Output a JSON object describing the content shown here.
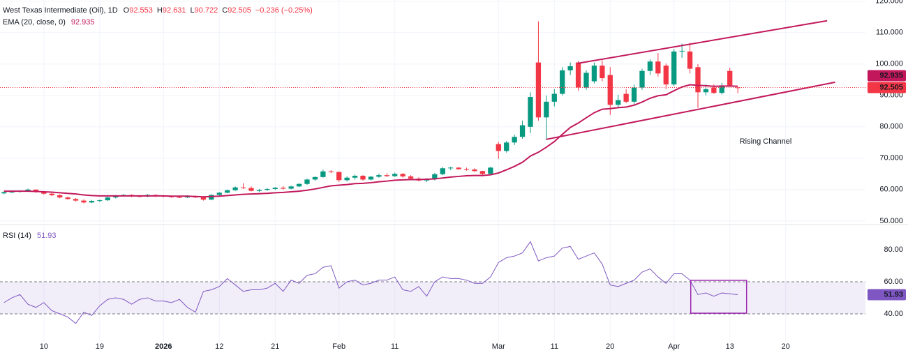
{
  "chart_data": [
    {
      "type": "candlestick",
      "title": "West Texas Intermediate (Oil), 1D",
      "ohlc_labels": [
        "O",
        "H",
        "L",
        "C"
      ],
      "change_label": "−0.236 (−0.25%)",
      "up_color": "#089981",
      "down_color": "#f23645",
      "open": [
        58.8,
        59.2,
        59.3,
        59.6,
        60.0,
        59.2,
        58.7,
        58.2,
        57.5,
        57.0,
        56.5,
        55.9,
        56.4,
        56.6,
        57.5,
        58.0,
        58.3,
        57.9,
        57.8,
        58.3,
        58.0,
        57.8,
        57.6,
        57.5,
        57.9,
        57.5,
        56.8,
        58.3,
        59.0,
        59.8,
        60.7,
        60.5,
        59.6,
        59.9,
        60.2,
        60.6,
        60.3,
        61.0,
        61.8,
        63.2,
        64.0,
        65.8,
        65.6,
        63.0,
        63.8,
        64.4,
        63.2,
        64.1,
        64.6,
        64.3,
        65.0,
        64.2,
        63.5,
        62.9,
        63.3,
        64.9,
        66.8,
        67.0,
        66.5,
        66.4,
        65.9,
        65.0,
        74.5,
        72.3,
        75.0,
        76.8,
        80.0,
        100.5,
        83.0,
        88.0,
        90.5,
        98.0,
        100.5,
        92.5,
        94.5,
        99.5,
        96.5,
        87.0,
        90.5,
        88.0,
        92.5,
        97.8,
        100.8,
        99.5,
        93.5,
        104.0,
        104.0,
        99.0,
        91.0,
        92.5,
        90.8,
        97.8,
        92.553
      ],
      "high": [
        59.4,
        59.6,
        59.8,
        60.3,
        60.1,
        59.5,
        59.0,
        58.5,
        57.8,
        57.3,
        56.9,
        56.7,
        56.8,
        57.8,
        58.3,
        58.6,
        58.5,
        58.2,
        58.6,
        58.5,
        58.2,
        58.1,
        58.0,
        58.2,
        58.1,
        57.8,
        58.5,
        59.2,
        60.0,
        61.0,
        62.0,
        61.0,
        60.2,
        60.5,
        60.8,
        61.1,
        61.2,
        62.1,
        63.5,
        64.2,
        66.4,
        66.2,
        65.8,
        64.2,
        64.8,
        64.6,
        64.4,
        65.0,
        65.2,
        65.4,
        65.3,
        64.6,
        63.9,
        63.6,
        65.3,
        67.2,
        67.3,
        67.2,
        67.0,
        66.8,
        66.0,
        67.3,
        75.2,
        75.5,
        77.5,
        82.0,
        91.0,
        113.6,
        90.0,
        92.0,
        99.0,
        100.5,
        101.0,
        98.0,
        100.5,
        101.2,
        99.0,
        90.2,
        92.0,
        93.5,
        98.5,
        101.5,
        103.5,
        100.2,
        104.8,
        106.5,
        106.8,
        100.0,
        93.5,
        93.5,
        94.0,
        98.8,
        92.631
      ],
      "low": [
        58.5,
        58.9,
        59.0,
        59.3,
        58.9,
        58.4,
        57.9,
        57.2,
        56.8,
        56.2,
        55.6,
        55.7,
        56.0,
        56.4,
        57.2,
        57.8,
        57.6,
        57.5,
        57.6,
        57.7,
        57.5,
        57.4,
        57.3,
        57.3,
        57.3,
        56.5,
        56.6,
        58.1,
        58.8,
        59.6,
        60.2,
        59.4,
        59.2,
        59.6,
        59.9,
        60.0,
        60.1,
        60.8,
        61.5,
        62.8,
        63.8,
        65.3,
        62.4,
        62.6,
        63.2,
        62.8,
        62.9,
        63.8,
        64.0,
        64.0,
        63.8,
        63.2,
        62.6,
        62.4,
        62.9,
        64.6,
        66.2,
        66.3,
        66.0,
        65.6,
        64.2,
        64.8,
        69.8,
        71.8,
        74.2,
        76.2,
        78.0,
        82.0,
        75.8,
        86.5,
        90.0,
        96.5,
        91.5,
        91.8,
        93.8,
        94.5,
        83.8,
        86.0,
        87.5,
        87.2,
        91.8,
        96.5,
        96.0,
        92.0,
        93.0,
        102.0,
        97.0,
        86.0,
        90.0,
        90.5,
        90.3,
        92.8,
        90.722
      ],
      "close": [
        59.2,
        59.3,
        59.6,
        60.0,
        59.2,
        58.7,
        58.2,
        57.5,
        57.0,
        56.5,
        55.9,
        56.4,
        56.6,
        57.5,
        58.0,
        58.3,
        57.9,
        57.8,
        58.3,
        58.0,
        57.8,
        57.6,
        57.5,
        57.9,
        57.5,
        56.8,
        58.3,
        59.0,
        59.8,
        60.7,
        60.5,
        59.6,
        59.9,
        60.2,
        60.6,
        60.3,
        61.0,
        61.8,
        63.2,
        64.0,
        65.8,
        65.6,
        63.0,
        63.8,
        64.4,
        63.2,
        64.1,
        64.6,
        64.3,
        65.0,
        64.2,
        63.5,
        62.9,
        63.3,
        64.9,
        66.8,
        67.0,
        66.5,
        66.4,
        65.9,
        65.0,
        67.0,
        72.3,
        75.0,
        76.8,
        80.5,
        89.5,
        83.0,
        88.0,
        90.5,
        98.0,
        99.3,
        92.5,
        97.2,
        99.5,
        95.5,
        87.0,
        88.5,
        88.0,
        92.5,
        97.8,
        100.8,
        97.0,
        93.5,
        104.0,
        104.2,
        98.5,
        91.0,
        92.0,
        90.8,
        93.0,
        93.2,
        92.505
      ],
      "overlay": {
        "name": "EMA (20, close, 0)",
        "color": "#c2185b",
        "values": [
          59.5,
          59.5,
          59.5,
          59.5,
          59.4,
          59.3,
          59.2,
          59.0,
          58.8,
          58.6,
          58.3,
          58.1,
          58.0,
          58.0,
          58.0,
          58.0,
          58.0,
          58.0,
          58.0,
          58.0,
          58.0,
          57.9,
          57.9,
          57.9,
          57.8,
          57.7,
          57.8,
          57.9,
          58.1,
          58.3,
          58.5,
          58.6,
          58.7,
          58.8,
          59.0,
          59.1,
          59.3,
          59.5,
          59.8,
          60.2,
          60.7,
          61.2,
          61.4,
          61.6,
          61.9,
          62.0,
          62.2,
          62.5,
          62.7,
          63.0,
          63.1,
          63.2,
          63.2,
          63.3,
          63.4,
          63.7,
          64.0,
          64.2,
          64.4,
          64.5,
          64.5,
          64.7,
          65.3,
          66.3,
          67.4,
          68.7,
          70.7,
          71.9,
          73.5,
          75.3,
          77.6,
          79.8,
          81.2,
          82.9,
          84.5,
          85.6,
          85.8,
          86.1,
          86.3,
          86.9,
          87.9,
          89.1,
          89.9,
          90.2,
          91.5,
          92.7,
          93.4,
          93.2,
          93.1,
          92.9,
          93.0,
          93.0,
          92.935
        ]
      },
      "trendlines": [
        {
          "x": [
            71.9,
            103.2
          ],
          "y": [
            100.2,
            113.8
          ],
          "color": "#c2185b"
        },
        {
          "x": [
            68.0,
            104.2
          ],
          "y": [
            76.0,
            94.2
          ],
          "color": "#c2185b"
        }
      ],
      "annotation": {
        "text": "Rising Channel",
        "color": "#2962ff"
      },
      "xlim": [
        -0.5,
        108
      ],
      "ylim": [
        49.3,
        120.4
      ],
      "yticks": [
        {
          "value": 50,
          "label": "50.000"
        },
        {
          "value": 60,
          "label": "60.000"
        },
        {
          "value": 70,
          "label": "70.000"
        },
        {
          "value": 80,
          "label": "80.000"
        },
        {
          "value": 90,
          "label": "90.000"
        },
        {
          "value": 100,
          "label": "100.000"
        },
        {
          "value": 110,
          "label": "110.000"
        },
        {
          "value": 120,
          "label": "120.000"
        }
      ],
      "grid": true
    },
    {
      "type": "line",
      "name": "RSI (14)",
      "color": "#7e57c2",
      "values": [
        47,
        50,
        52,
        46,
        44,
        47,
        42,
        40,
        38,
        34,
        41,
        39,
        45,
        49,
        50,
        49,
        46,
        49,
        50,
        48,
        48,
        47,
        49,
        44,
        41,
        54,
        55,
        57,
        62,
        58,
        54,
        55,
        55,
        56,
        59,
        54,
        61,
        59,
        64,
        65,
        69,
        70,
        56,
        60,
        61,
        58,
        59,
        61,
        61,
        63,
        55,
        54,
        57,
        51,
        60,
        63,
        62,
        62,
        61,
        59,
        59,
        63,
        72,
        75,
        76,
        78,
        85,
        73,
        75,
        76,
        81,
        82,
        74,
        76,
        78,
        71,
        58,
        57,
        59,
        61,
        66,
        68,
        63,
        59,
        65,
        65,
        61,
        52,
        53,
        51,
        53,
        52.5,
        51.93
      ],
      "band": [
        40,
        60
      ],
      "box": {
        "x": [
          86.1,
          93.1
        ],
        "y": [
          40.4,
          60.9
        ],
        "color": "#9c27b0"
      },
      "ylim": [
        22.6,
        95.2
      ],
      "yticks": [
        {
          "value": 40,
          "label": "40.00"
        },
        {
          "value": 60,
          "label": "60.00"
        },
        {
          "value": 80,
          "label": "80.00"
        }
      ],
      "xticks": [
        {
          "value": 5,
          "label": "10"
        },
        {
          "value": 12,
          "label": "19"
        },
        {
          "value": 20,
          "label": "2026"
        },
        {
          "value": 27,
          "label": "12"
        },
        {
          "value": 34,
          "label": "21"
        },
        {
          "value": 42,
          "label": "Feb"
        },
        {
          "value": 49,
          "label": "11"
        },
        {
          "value": 62,
          "label": "Mar"
        },
        {
          "value": 69,
          "label": "11"
        },
        {
          "value": 76,
          "label": "20"
        },
        {
          "value": 84,
          "label": "Apr"
        },
        {
          "value": 91,
          "label": "13"
        },
        {
          "value": 98,
          "label": "20"
        }
      ]
    }
  ]
}
